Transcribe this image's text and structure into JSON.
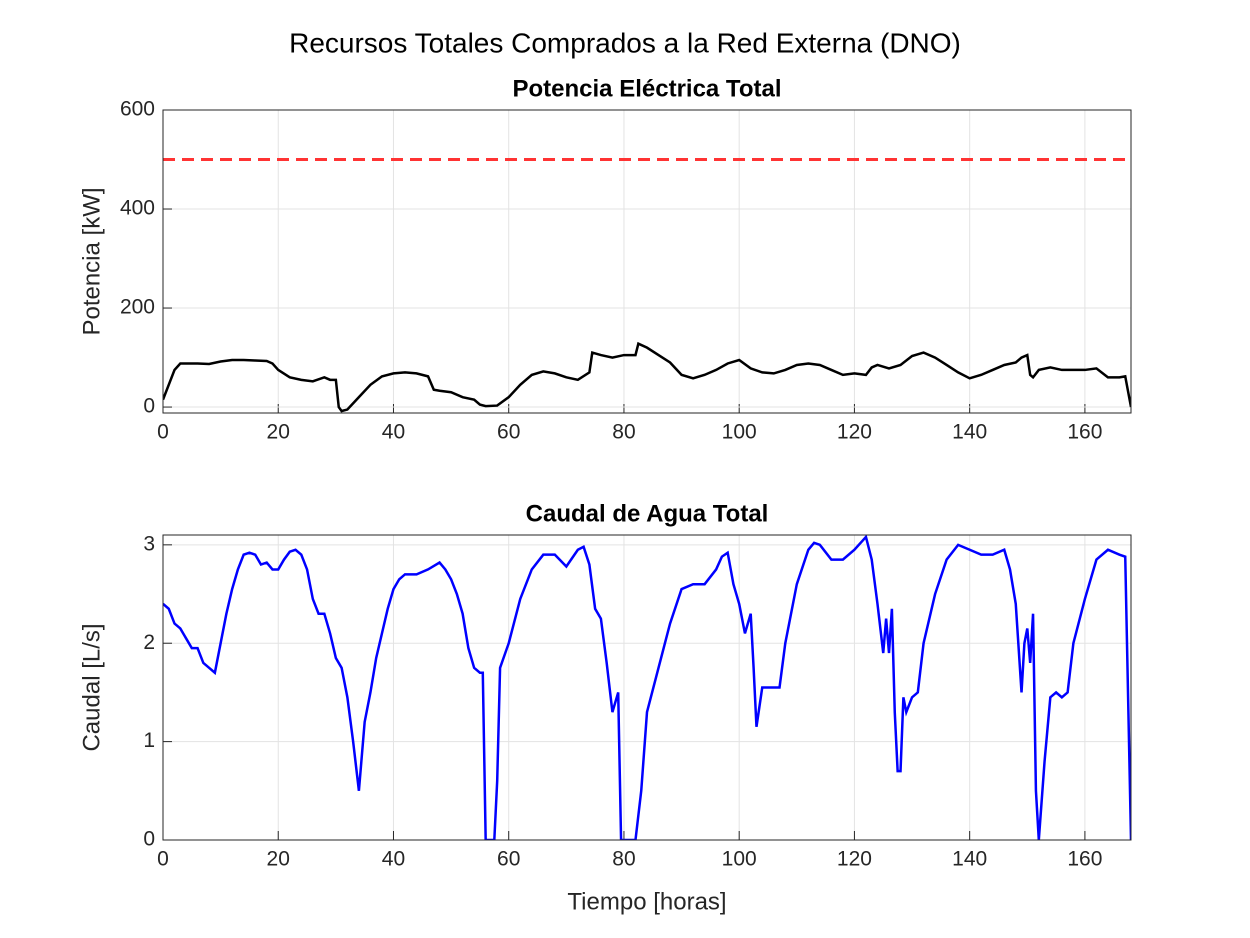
{
  "title": "Recursos Totales Comprados a la Red Externa (DNO)",
  "chart_data": [
    {
      "type": "line",
      "title": "Potencia Eléctrica Total",
      "ylabel": "Potencia [kW]",
      "xlim": [
        0,
        168
      ],
      "xticks": [
        0,
        20,
        40,
        60,
        80,
        100,
        120,
        140,
        160
      ],
      "ylim": [
        -12,
        600
      ],
      "yticks": [
        0,
        200,
        400,
        600
      ],
      "grid": true,
      "series": [
        {
          "color": "#000000",
          "linestyle": "solid",
          "x": [
            0,
            2,
            3,
            4,
            6,
            8,
            10,
            12,
            14,
            16,
            18,
            19,
            20,
            22,
            24,
            26,
            28,
            29,
            30,
            30.5,
            31,
            32,
            34,
            36,
            38,
            40,
            42,
            44,
            46,
            47,
            48,
            50,
            52,
            54,
            55,
            56,
            58,
            60,
            62,
            64,
            66,
            68,
            70,
            72,
            74,
            74.5,
            76,
            78,
            80,
            82,
            82.5,
            84,
            86,
            88,
            90,
            92,
            94,
            96,
            98,
            100,
            102,
            104,
            106,
            108,
            110,
            112,
            114,
            116,
            118,
            120,
            122,
            123,
            124,
            126,
            128,
            130,
            132,
            134,
            136,
            138,
            140,
            142,
            144,
            146,
            148,
            149,
            150,
            150.5,
            151,
            152,
            154,
            156,
            158,
            160,
            162,
            164,
            166,
            167,
            168
          ],
          "values": [
            15,
            75,
            88,
            88,
            88,
            87,
            92,
            95,
            95,
            94,
            93,
            88,
            75,
            60,
            55,
            52,
            60,
            55,
            55,
            0,
            -8,
            -5,
            20,
            45,
            62,
            68,
            70,
            68,
            62,
            35,
            33,
            30,
            20,
            15,
            5,
            2,
            3,
            20,
            45,
            65,
            72,
            68,
            60,
            55,
            70,
            110,
            105,
            100,
            105,
            105,
            128,
            120,
            105,
            90,
            65,
            58,
            65,
            75,
            88,
            95,
            78,
            70,
            68,
            75,
            85,
            88,
            85,
            75,
            65,
            68,
            65,
            80,
            85,
            78,
            85,
            103,
            110,
            100,
            85,
            70,
            58,
            65,
            75,
            85,
            90,
            100,
            105,
            65,
            60,
            75,
            80,
            75,
            75,
            75,
            78,
            60,
            60,
            62,
            0
          ]
        },
        {
          "color": "#ff3333",
          "linestyle": "dashed",
          "x": [
            0,
            168
          ],
          "values": [
            500,
            500
          ]
        }
      ]
    },
    {
      "type": "line",
      "title": "Caudal de Agua Total",
      "xlabel": "Tiempo [horas]",
      "ylabel": "Caudal [L/s]",
      "xlim": [
        0,
        168
      ],
      "xticks": [
        0,
        20,
        40,
        60,
        80,
        100,
        120,
        140,
        160
      ],
      "ylim": [
        0,
        3.1
      ],
      "yticks": [
        0,
        1,
        2,
        3
      ],
      "grid": true,
      "series": [
        {
          "color": "#0000ff",
          "linestyle": "solid",
          "x": [
            0,
            1,
            2,
            3,
            4,
            5,
            6,
            7,
            8,
            9,
            10,
            11,
            12,
            13,
            14,
            15,
            16,
            17,
            18,
            19,
            20,
            21,
            22,
            23,
            24,
            25,
            26,
            27,
            28,
            29,
            30,
            31,
            32,
            33,
            34,
            35,
            36,
            37,
            38,
            39,
            40,
            41,
            42,
            44,
            46,
            48,
            49,
            50,
            51,
            52,
            53,
            54,
            55,
            55.5,
            56,
            57,
            57.5,
            58,
            58.5,
            60,
            62,
            64,
            66,
            68,
            70,
            72,
            73,
            74,
            75,
            76,
            77,
            78,
            79,
            79.5,
            80,
            82,
            83,
            84,
            86,
            88,
            90,
            92,
            94,
            96,
            97,
            98,
            99,
            100,
            101,
            102,
            102.5,
            103,
            104,
            106,
            107,
            108,
            110,
            112,
            113,
            114,
            116,
            118,
            120,
            122,
            123,
            124,
            125,
            125.5,
            126,
            126.5,
            127,
            127.5,
            128,
            128.5,
            129,
            130,
            131,
            132,
            134,
            136,
            138,
            140,
            142,
            144,
            146,
            147,
            148,
            149,
            149.5,
            150,
            150.5,
            151,
            151.5,
            152,
            153,
            154,
            155,
            156,
            157,
            158,
            160,
            162,
            164,
            166,
            167,
            168
          ],
          "values": [
            2.4,
            2.35,
            2.2,
            2.15,
            2.05,
            1.95,
            1.95,
            1.8,
            1.75,
            1.7,
            2.0,
            2.3,
            2.55,
            2.75,
            2.9,
            2.92,
            2.9,
            2.8,
            2.82,
            2.75,
            2.75,
            2.85,
            2.93,
            2.95,
            2.9,
            2.75,
            2.45,
            2.3,
            2.3,
            2.1,
            1.85,
            1.75,
            1.45,
            1.0,
            0.5,
            1.2,
            1.5,
            1.85,
            2.1,
            2.35,
            2.55,
            2.65,
            2.7,
            2.7,
            2.75,
            2.82,
            2.75,
            2.65,
            2.5,
            2.3,
            1.95,
            1.75,
            1.7,
            1.7,
            0,
            0,
            0,
            0.6,
            1.75,
            2.0,
            2.45,
            2.75,
            2.9,
            2.9,
            2.78,
            2.95,
            2.98,
            2.8,
            2.35,
            2.25,
            1.8,
            1.3,
            1.5,
            0,
            0,
            0,
            0.5,
            1.3,
            1.75,
            2.2,
            2.55,
            2.6,
            2.6,
            2.75,
            2.88,
            2.92,
            2.6,
            2.4,
            2.1,
            2.3,
            1.75,
            1.15,
            1.55,
            1.55,
            1.55,
            2.0,
            2.6,
            2.95,
            3.02,
            3.0,
            2.85,
            2.85,
            2.95,
            3.08,
            2.85,
            2.4,
            1.9,
            2.25,
            1.9,
            2.35,
            1.3,
            0.7,
            0.7,
            1.45,
            1.3,
            1.45,
            1.5,
            2.0,
            2.5,
            2.85,
            3.0,
            2.95,
            2.9,
            2.9,
            2.95,
            2.75,
            2.4,
            1.5,
            2.0,
            2.15,
            1.8,
            2.3,
            0.5,
            0,
            0.8,
            1.45,
            1.5,
            1.45,
            1.5,
            2.0,
            2.45,
            2.85,
            2.95,
            2.9,
            2.88,
            0
          ]
        }
      ]
    }
  ]
}
